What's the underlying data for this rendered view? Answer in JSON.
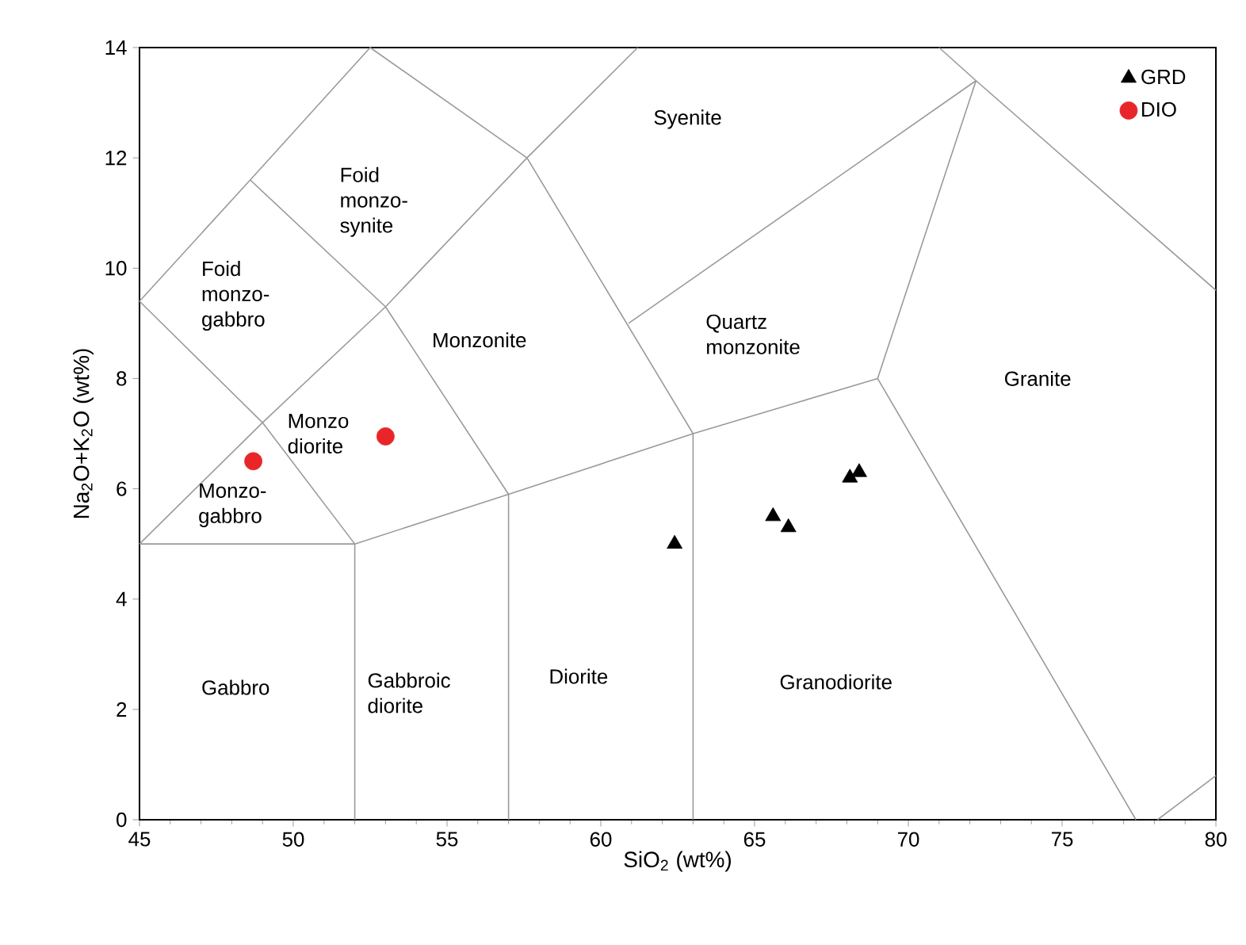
{
  "chart_data": {
    "type": "scatter",
    "xlabel": "SiO$_{2}$ (wt%)",
    "ylabel": "Na$_{2}$O+K$_{2}$O (wt%)",
    "xlim": [
      45,
      80
    ],
    "ylim": [
      0,
      14
    ],
    "xticks": [
      45,
      50,
      55,
      60,
      65,
      70,
      75,
      80
    ],
    "yticks": [
      0,
      2,
      4,
      6,
      8,
      10,
      12,
      14
    ],
    "grid": false,
    "legend": "top right",
    "series": [
      {
        "name": "GRD",
        "marker": "triangle",
        "color": "#000000",
        "x": [
          62.4,
          65.6,
          66.1,
          68.1,
          68.4
        ],
        "values": [
          5.0,
          5.5,
          5.3,
          6.2,
          6.3
        ]
      },
      {
        "name": "DIO",
        "marker": "circle",
        "color": "#e8262a",
        "x": [
          48.7,
          53.0
        ],
        "values": [
          6.5,
          6.95
        ]
      },
      {
        "type": "line",
        "color": "#9a9a9a",
        "x": [
          45,
          49,
          52,
          52,
          null,
          45,
          52,
          57,
          63,
          69,
          77.4,
          null,
          45,
          49,
          53,
          57,
          57,
          null,
          63,
          63,
          57.6,
          53,
          48.6,
          45,
          null,
          48.6,
          52.5,
          57.6,
          61.2,
          null,
          60.9,
          72.2,
          69,
          null,
          71,
          72.2,
          80,
          null,
          78.1,
          80
        ],
        "values": [
          9.4,
          7.2,
          5,
          0,
          null,
          5,
          5,
          5.9,
          7,
          8,
          0,
          null,
          5,
          7.2,
          9.3,
          5.9,
          0,
          null,
          0,
          7,
          12,
          9.3,
          11.6,
          9.4,
          null,
          11.6,
          14,
          12,
          14,
          null,
          9,
          13.4,
          8,
          null,
          14,
          13.4,
          9.6,
          null,
          0,
          0.8
        ]
      }
    ],
    "annotations": [
      "Foid monzo-gabbro",
      "Foid monzo-synite",
      "Syenite",
      "Monzonite",
      "Monzo diorite",
      "Monzo-gabbro",
      "Quartz monzonite",
      "Granite",
      "Gabbro",
      "Gabbroic diorite",
      "Diorite",
      "Granodiorite"
    ]
  }
}
